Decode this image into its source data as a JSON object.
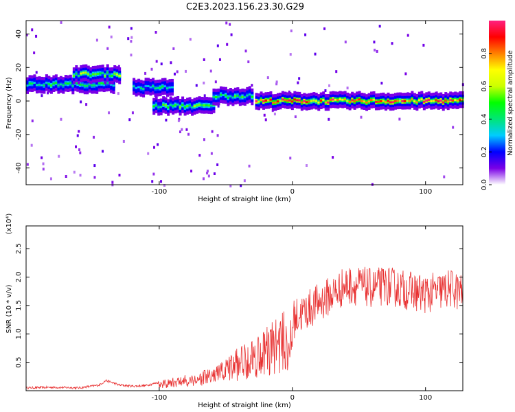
{
  "title": "C2E3.2023.156.23.30.G29",
  "chart_data": [
    {
      "type": "heatmap",
      "name": "spectrogram",
      "xlabel": "Height of straight line (km)",
      "ylabel": "Frequency (Hz)",
      "xlim": [
        -200,
        128
      ],
      "ylim": [
        -50,
        48
      ],
      "x_ticks": [
        -100,
        0,
        100
      ],
      "x_tick_labels": [
        "-100",
        "0",
        "100"
      ],
      "y_ticks": [
        -40,
        -20,
        0,
        20,
        40
      ],
      "y_tick_labels": [
        "-40",
        "-20",
        "0",
        "20",
        "40"
      ],
      "colorbar": {
        "label": "Normalized spectral amplitude",
        "range": [
          0.0,
          1.0
        ],
        "ticks": [
          0.0,
          0.2,
          0.4,
          0.6,
          0.8
        ],
        "tick_labels": [
          "0.0",
          "0.2",
          "0.4",
          "0.6",
          "0.8"
        ],
        "colors": [
          "#ffffff",
          "#7a00e6",
          "#0000ff",
          "#00ccff",
          "#00e676",
          "#00ff00",
          "#ccff00",
          "#ffff00",
          "#ff8000",
          "#ff0000",
          "#ff2080"
        ]
      },
      "bands": [
        {
          "x_start": -200,
          "x_end": -135,
          "frequency": 10,
          "amplitude": 0.45
        },
        {
          "x_start": -165,
          "x_end": -130,
          "frequency": 16,
          "amplitude": 0.55
        },
        {
          "x_start": -120,
          "x_end": -90,
          "frequency": 8,
          "amplitude": 0.4
        },
        {
          "x_start": -105,
          "x_end": -60,
          "frequency": -3,
          "amplitude": 0.5
        },
        {
          "x_start": -60,
          "x_end": -30,
          "frequency": 3,
          "amplitude": 0.45
        },
        {
          "x_start": -28,
          "x_end": 128,
          "frequency": 0,
          "amplitude": 0.85
        }
      ]
    },
    {
      "type": "line",
      "name": "snr",
      "xlabel": "Height of straight line (km)",
      "ylabel": "SNR (10 * v/v)",
      "scale_label": "(x10⁴)",
      "xlim": [
        -200,
        128
      ],
      "ylim": [
        0,
        2.9
      ],
      "x_ticks": [
        -100,
        0,
        100
      ],
      "x_tick_labels": [
        "-100",
        "0",
        "100"
      ],
      "y_ticks": [
        0.5,
        1.0,
        1.5,
        2.0,
        2.5
      ],
      "y_tick_labels": [
        "0.5",
        "1.0",
        "1.5",
        "2.0",
        "2.5"
      ],
      "color": "#e83030",
      "series": [
        {
          "name": "SNR",
          "x": [
            -200,
            -180,
            -160,
            -145,
            -140,
            -130,
            -120,
            -110,
            -100,
            -90,
            -80,
            -70,
            -60,
            -50,
            -40,
            -30,
            -20,
            -10,
            0,
            10,
            20,
            30,
            40,
            50,
            60,
            70,
            80,
            90,
            100,
            110,
            120,
            128
          ],
          "y": [
            0.05,
            0.06,
            0.05,
            0.1,
            0.18,
            0.1,
            0.08,
            0.09,
            0.15,
            0.2,
            0.25,
            0.3,
            0.35,
            0.5,
            0.7,
            0.85,
            1.0,
            1.2,
            1.25,
            1.4,
            1.55,
            1.7,
            1.85,
            1.85,
            1.8,
            1.85,
            1.8,
            1.75,
            1.7,
            1.75,
            1.8,
            1.7
          ]
        }
      ]
    }
  ]
}
